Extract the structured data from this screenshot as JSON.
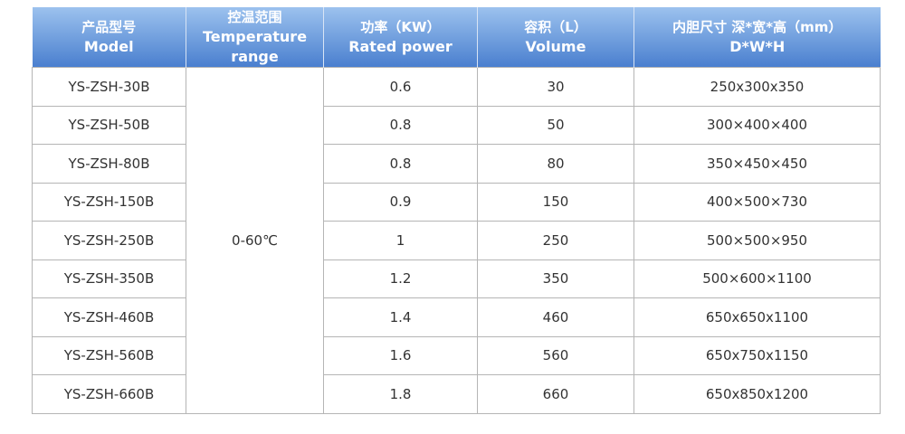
{
  "table": {
    "header": [
      {
        "zh": "产品型号",
        "en": "Model"
      },
      {
        "zh": "控温范围",
        "en": "Temperature range"
      },
      {
        "zh": "功率（KW）",
        "en": "Rated power"
      },
      {
        "zh": "容积（L）",
        "en": "Volume"
      },
      {
        "zh": "内胆尺寸 深*宽*高（mm）",
        "en": "D*W*H"
      }
    ],
    "temperature_range": "0-60℃",
    "rows": [
      [
        "YS-ZSH-30B",
        0.6,
        30,
        "250x300x350"
      ],
      [
        "YS-ZSH-50B",
        0.8,
        50,
        "300×400×400"
      ],
      [
        "YS-ZSH-80B",
        0.8,
        80,
        "350×450×450"
      ],
      [
        "YS-ZSH-150B",
        0.9,
        150,
        "400×500×730"
      ],
      [
        "YS-ZSH-250B",
        1,
        250,
        "500×500×950"
      ],
      [
        "YS-ZSH-350B",
        1.2,
        350,
        "500×600×1100"
      ],
      [
        "YS-ZSH-460B",
        1.4,
        460,
        "650x650x1100"
      ],
      [
        "YS-ZSH-560B",
        1.6,
        560,
        "650x750x1150"
      ],
      [
        "YS-ZSH-660B",
        1.8,
        660,
        "650x850x1200"
      ]
    ]
  }
}
